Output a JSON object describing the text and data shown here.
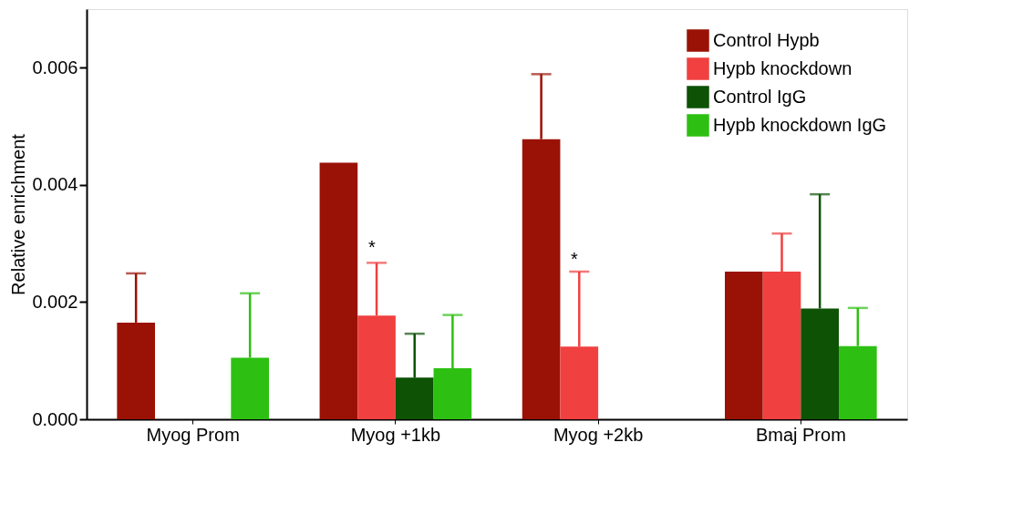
{
  "chart_data": {
    "type": "bar",
    "ylabel": "Relative enrichment",
    "categories": [
      "Myog Prom",
      "Myog +1kb",
      "Myog +2kb",
      "Bmaj Prom"
    ],
    "series": [
      {
        "name": "Control Hypb",
        "color": "#9a1205",
        "values": [
          0.00165,
          0.00438,
          0.00478,
          0.00252
        ],
        "errors": [
          [
            0.00165,
            0.00249
          ],
          null,
          [
            0.00478,
            0.00589
          ],
          null
        ]
      },
      {
        "name": "Hypb knockdown",
        "color": "#f04040",
        "values": [
          null,
          0.00177,
          0.00124,
          0.00252
        ],
        "errors": [
          null,
          [
            0.00177,
            0.00267
          ],
          [
            0.00124,
            0.00252
          ],
          [
            0.00252,
            0.00317
          ]
        ]
      },
      {
        "name": "Control IgG",
        "color": "#0d5205",
        "values": [
          null,
          0.00071,
          null,
          0.00189
        ],
        "errors": [
          null,
          [
            0.00071,
            0.00146
          ],
          null,
          [
            0.00189,
            0.00384
          ]
        ]
      },
      {
        "name": "Hypb knockdown IgG",
        "color": "#2dc012",
        "values": [
          0.00105,
          0.00087,
          null,
          0.00125
        ],
        "errors": [
          [
            0.00105,
            0.00215
          ],
          [
            0.00087,
            0.00178
          ],
          null,
          [
            0.00125,
            0.0019
          ]
        ]
      }
    ],
    "ylim": [
      0,
      0.007
    ],
    "yticks": [
      {
        "value": 0,
        "label": "0.000"
      },
      {
        "value": 0.002,
        "label": "0.002"
      },
      {
        "value": 0.004,
        "label": "0.004"
      },
      {
        "value": 0.006,
        "label": "0.006"
      }
    ],
    "annotations": [
      "*",
      "*"
    ],
    "grid": false,
    "legend": "top right"
  }
}
